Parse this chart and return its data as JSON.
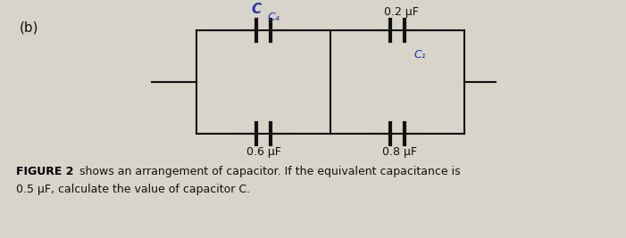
{
  "bg_color": "#d8d4ca",
  "title_b": "(b)",
  "fig_caption_line1": "FIGURE 2 shows an arrangement of capacitor. If the equivalent capacitance is",
  "fig_caption_line2": "0.5 μF, calculate the value of capacitor C.",
  "label_C": "C",
  "label_C4": "C₄",
  "label_06": "0.6 μF",
  "label_02": "0.2 μF",
  "label_08": "0.8 μF",
  "label_C1": "C₁",
  "line_color": "#111111",
  "text_color": "#111111",
  "caption_bold": "#000000",
  "handwritten_color": "#2233aa",
  "circuit_bg": "#ccc8be"
}
